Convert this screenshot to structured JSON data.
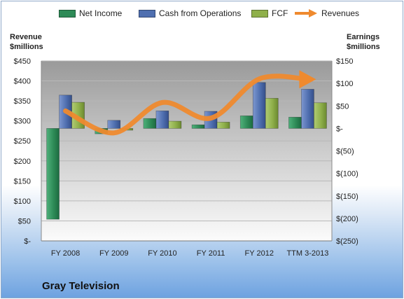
{
  "company": "Gray Television",
  "legend": [
    {
      "label": "Net Income",
      "color": "#2e8b57",
      "kind": "bar"
    },
    {
      "label": "Cash from Operations",
      "color": "#4f6fb0",
      "kind": "bar"
    },
    {
      "label": "FCF",
      "color": "#8fb04a",
      "kind": "bar"
    },
    {
      "label": "Revenues",
      "color": "#ef8a2e",
      "kind": "arrow"
    }
  ],
  "left_axis_title": [
    "Revenue",
    "$millions"
  ],
  "right_axis_title": [
    "Earnings",
    "$millions"
  ],
  "chart_data": {
    "type": "bar",
    "title": "",
    "categories": [
      "FY 2008",
      "FY 2009",
      "FY 2010",
      "FY 2011",
      "FY 2012",
      "TTM 3-2013"
    ],
    "series": [
      {
        "name": "Net Income",
        "axis": "right",
        "type": "bar",
        "color": "#2e8b57",
        "values": [
          -202,
          -12,
          22,
          8,
          28,
          25
        ]
      },
      {
        "name": "Cash from Operations",
        "axis": "right",
        "type": "bar",
        "color": "#4f6fb0",
        "values": [
          74,
          18,
          39,
          38,
          102,
          87
        ]
      },
      {
        "name": "FCF",
        "axis": "right",
        "type": "bar",
        "color": "#8fb04a",
        "values": [
          58,
          -4,
          16,
          14,
          67,
          57
        ]
      },
      {
        "name": "Revenues",
        "axis": "left",
        "type": "line",
        "color": "#ef8a2e",
        "values": [
          325,
          270,
          346,
          307,
          405,
          404
        ]
      }
    ],
    "left_axis": {
      "ylim": [
        0,
        450
      ],
      "ticks": [
        "$-",
        "$50",
        "$100",
        "$150",
        "$200",
        "$250",
        "$300",
        "$350",
        "$400",
        "$450"
      ]
    },
    "right_axis": {
      "ylim": [
        -250,
        150
      ],
      "ticks": [
        "$(250)",
        "$(200)",
        "$(150)",
        "$(100)",
        "$(50)",
        "$-",
        "$50",
        "$100",
        "$150"
      ]
    },
    "grid": true,
    "legend_position": "top"
  }
}
